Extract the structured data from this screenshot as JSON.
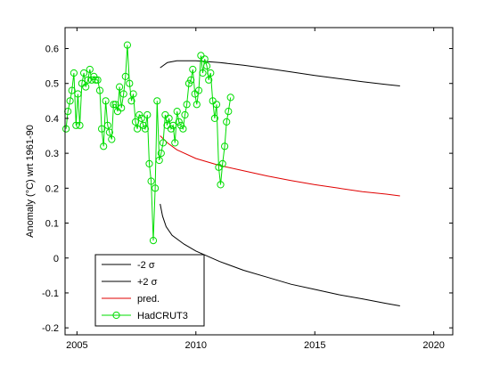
{
  "chart_data": {
    "type": "line",
    "title": "",
    "xlabel": "",
    "ylabel": "Anomaly (°C) wrt 1961-90",
    "xlim": [
      2004.5,
      2020.8
    ],
    "ylim": [
      -0.22,
      0.66
    ],
    "xticks": [
      2005,
      2010,
      2015,
      2020
    ],
    "yticks": [
      -0.2,
      -0.1,
      0,
      0.1,
      0.2,
      0.3,
      0.4,
      0.5,
      0.6
    ],
    "grid": false,
    "legend_position": "bottom-left",
    "series": [
      {
        "name": "-2 σ",
        "color": "#000000",
        "marker": "none",
        "x": [
          2008.5,
          2008.6,
          2008.75,
          2009.0,
          2009.5,
          2010.0,
          2011.0,
          2012.0,
          2013.0,
          2014.0,
          2015.0,
          2016.0,
          2017.0,
          2018.0,
          2018.58
        ],
        "y": [
          0.155,
          0.12,
          0.09,
          0.065,
          0.04,
          0.02,
          -0.01,
          -0.035,
          -0.055,
          -0.075,
          -0.09,
          -0.105,
          -0.117,
          -0.13,
          -0.137
        ]
      },
      {
        "name": "+2 σ",
        "color": "#000000",
        "marker": "none",
        "x": [
          2008.5,
          2008.8,
          2009.2,
          2010.0,
          2011.0,
          2012.0,
          2013.0,
          2014.0,
          2015.0,
          2016.0,
          2017.0,
          2018.0,
          2018.58
        ],
        "y": [
          0.545,
          0.56,
          0.565,
          0.565,
          0.56,
          0.552,
          0.543,
          0.533,
          0.523,
          0.514,
          0.505,
          0.497,
          0.493
        ]
      },
      {
        "name": "pred.",
        "color": "#e00000",
        "marker": "none",
        "x": [
          2008.5,
          2008.8,
          2009.2,
          2010.0,
          2011.0,
          2012.0,
          2013.0,
          2014.0,
          2015.0,
          2016.0,
          2017.0,
          2018.0,
          2018.58
        ],
        "y": [
          0.35,
          0.33,
          0.31,
          0.285,
          0.265,
          0.25,
          0.235,
          0.222,
          0.21,
          0.2,
          0.19,
          0.183,
          0.178
        ]
      },
      {
        "name": "HadCRUT3",
        "color": "#00dd00",
        "marker": "circle",
        "x": [
          2004.54,
          2004.62,
          2004.71,
          2004.79,
          2004.87,
          2004.96,
          2005.04,
          2005.12,
          2005.21,
          2005.29,
          2005.37,
          2005.46,
          2005.54,
          2005.62,
          2005.71,
          2005.79,
          2005.87,
          2005.96,
          2006.04,
          2006.12,
          2006.21,
          2006.29,
          2006.37,
          2006.46,
          2006.54,
          2006.62,
          2006.71,
          2006.79,
          2006.87,
          2006.96,
          2007.04,
          2007.12,
          2007.21,
          2007.29,
          2007.37,
          2007.46,
          2007.54,
          2007.62,
          2007.71,
          2007.79,
          2007.87,
          2007.96,
          2008.04,
          2008.12,
          2008.21,
          2008.29,
          2008.37,
          2008.46,
          2008.54,
          2008.62,
          2008.71,
          2008.79,
          2008.87,
          2008.96,
          2009.04,
          2009.12,
          2009.21,
          2009.29,
          2009.37,
          2009.46,
          2009.54,
          2009.62,
          2009.71,
          2009.79,
          2009.87,
          2009.96,
          2010.04,
          2010.12,
          2010.21,
          2010.29,
          2010.37,
          2010.46,
          2010.54,
          2010.62,
          2010.71,
          2010.79,
          2010.87,
          2010.96,
          2011.04,
          2011.12,
          2011.21,
          2011.29,
          2011.37,
          2011.46
        ],
        "y": [
          0.37,
          0.42,
          0.45,
          0.48,
          0.53,
          0.38,
          0.47,
          0.38,
          0.5,
          0.53,
          0.49,
          0.51,
          0.54,
          0.51,
          0.52,
          0.51,
          0.51,
          0.48,
          0.37,
          0.32,
          0.45,
          0.38,
          0.36,
          0.34,
          0.44,
          0.44,
          0.42,
          0.49,
          0.43,
          0.47,
          0.52,
          0.61,
          0.5,
          0.45,
          0.47,
          0.39,
          0.37,
          0.41,
          0.4,
          0.38,
          0.37,
          0.41,
          0.27,
          0.22,
          0.05,
          0.2,
          0.45,
          0.28,
          0.3,
          0.33,
          0.41,
          0.38,
          0.4,
          0.37,
          0.38,
          0.33,
          0.42,
          0.39,
          0.38,
          0.37,
          0.41,
          0.44,
          0.5,
          0.51,
          0.54,
          0.47,
          0.44,
          0.48,
          0.58,
          0.53,
          0.57,
          0.55,
          0.51,
          0.53,
          0.45,
          0.4,
          0.44,
          0.26,
          0.21,
          0.27,
          0.32,
          0.39,
          0.42,
          0.46
        ]
      }
    ]
  }
}
